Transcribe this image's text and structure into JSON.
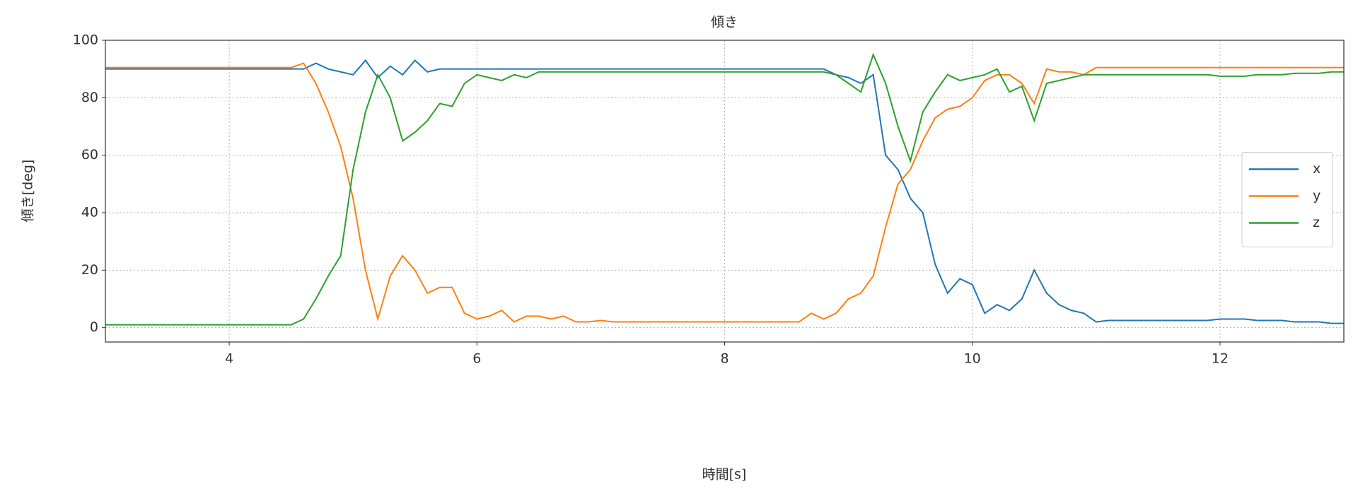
{
  "chart_data": {
    "type": "line",
    "title": "傾き",
    "x_label": "時間[s]",
    "y_label": "傾き[deg]",
    "x": [
      3,
      3.1,
      3.2,
      3.3,
      3.4,
      3.5,
      3.6,
      3.7,
      3.8,
      3.9,
      4,
      4.1,
      4.2,
      4.3,
      4.4,
      4.5,
      4.6,
      4.7,
      4.8,
      4.9,
      5,
      5.1,
      5.2,
      5.3,
      5.4,
      5.5,
      5.6,
      5.7,
      5.8,
      5.9,
      6,
      6.1,
      6.2,
      6.3,
      6.4,
      6.5,
      6.6,
      6.7,
      6.8,
      6.9,
      7,
      7.1,
      7.2,
      7.3,
      7.4,
      7.5,
      7.6,
      7.7,
      7.8,
      7.9,
      8,
      8.1,
      8.2,
      8.3,
      8.4,
      8.5,
      8.6,
      8.7,
      8.8,
      8.9,
      9,
      9.1,
      9.2,
      9.3,
      9.4,
      9.5,
      9.6,
      9.7,
      9.8,
      9.9,
      10,
      10.1,
      10.2,
      10.3,
      10.4,
      10.5,
      10.6,
      10.7,
      10.8,
      10.9,
      11,
      11.1,
      11.2,
      11.3,
      11.4,
      11.5,
      11.6,
      11.7,
      11.8,
      11.9,
      12,
      12.1,
      12.2,
      12.3,
      12.4,
      12.5,
      12.6,
      12.7,
      12.8,
      12.9,
      13
    ],
    "series": [
      {
        "name": "x",
        "color": "#1f77b4",
        "values": [
          90,
          90,
          90,
          90,
          90,
          90,
          90,
          90,
          90,
          90,
          90,
          90,
          90,
          90,
          90,
          90,
          90,
          92,
          90,
          89,
          88,
          93,
          87,
          91,
          88,
          93,
          89,
          90,
          90,
          90,
          90,
          90,
          90,
          90,
          90,
          90,
          90,
          90,
          90,
          90,
          90,
          90,
          90,
          90,
          90,
          90,
          90,
          90,
          90,
          90,
          90,
          90,
          90,
          90,
          90,
          90,
          90,
          90,
          90,
          88,
          87,
          85,
          88,
          60,
          55,
          45,
          40,
          22,
          12,
          17,
          15,
          5,
          8,
          6,
          10,
          20,
          12,
          8,
          6,
          5,
          2,
          2.5,
          2.5,
          2.5,
          2.5,
          2.5,
          2.5,
          2.5,
          2.5,
          2.5,
          3,
          3,
          3,
          2.5,
          2.5,
          2.5,
          2,
          2,
          2,
          1.5,
          1.5
        ]
      },
      {
        "name": "y",
        "color": "#ff7f0e",
        "values": [
          90.5,
          90.5,
          90.5,
          90.5,
          90.5,
          90.5,
          90.5,
          90.5,
          90.5,
          90.5,
          90.5,
          90.5,
          90.5,
          90.5,
          90.5,
          90.5,
          92,
          85,
          75,
          63,
          45,
          20,
          3,
          18,
          25,
          20,
          12,
          14,
          14,
          5,
          3,
          4,
          6,
          2,
          4,
          4,
          3,
          4,
          2,
          2,
          2.5,
          2,
          2,
          2,
          2,
          2,
          2,
          2,
          2,
          2,
          2,
          2,
          2,
          2,
          2,
          2,
          2,
          5,
          3,
          5,
          10,
          12,
          18,
          35,
          50,
          55,
          65,
          73,
          76,
          77,
          80,
          86,
          88,
          88,
          85,
          78,
          90,
          89,
          89,
          88,
          90.5,
          90.5,
          90.5,
          90.5,
          90.5,
          90.5,
          90.5,
          90.5,
          90.5,
          90.5,
          90.5,
          90.5,
          90.5,
          90.5,
          90.5,
          90.5,
          90.5,
          90.5,
          90.5,
          90.5,
          90.5
        ]
      },
      {
        "name": "z",
        "color": "#2ca02c",
        "values": [
          1,
          1,
          1,
          1,
          1,
          1,
          1,
          1,
          1,
          1,
          1,
          1,
          1,
          1,
          1,
          1,
          3,
          10,
          18,
          25,
          55,
          75,
          88,
          80,
          65,
          68,
          72,
          78,
          77,
          85,
          88,
          87,
          86,
          88,
          87,
          89,
          89,
          89,
          89,
          89,
          89,
          89,
          89,
          89,
          89,
          89,
          89,
          89,
          89,
          89,
          89,
          89,
          89,
          89,
          89,
          89,
          89,
          89,
          89,
          88,
          85,
          82,
          95,
          85,
          70,
          58,
          75,
          82,
          88,
          86,
          87,
          88,
          90,
          82,
          84,
          72,
          85,
          86,
          87,
          88,
          88,
          88,
          88,
          88,
          88,
          88,
          88,
          88,
          88,
          88,
          87.5,
          87.5,
          87.5,
          88,
          88,
          88,
          88.5,
          88.5,
          88.5,
          89,
          89
        ]
      }
    ],
    "xlim": [
      3,
      13
    ],
    "ylim": [
      -5,
      100
    ],
    "xticks": [
      4,
      6,
      8,
      10,
      12
    ],
    "yticks": [
      0,
      20,
      40,
      60,
      80,
      100
    ],
    "grid": true,
    "legend": "center right"
  }
}
